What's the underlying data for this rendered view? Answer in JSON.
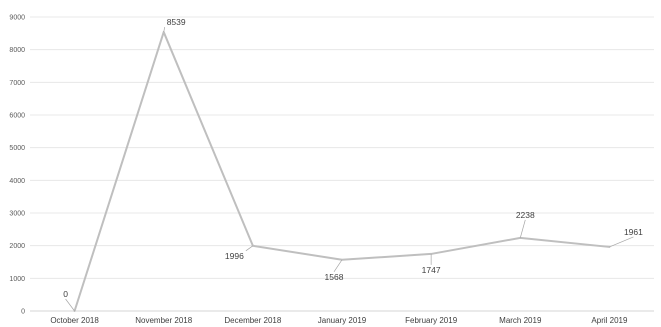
{
  "chart_data": {
    "type": "line",
    "title": "",
    "xlabel": "",
    "ylabel": "",
    "categories": [
      "October 2018",
      "November 2018",
      "December 2018",
      "January 2019",
      "February 2019",
      "March 2019",
      "April 2019"
    ],
    "series": [
      {
        "values": [
          0,
          8539,
          1996,
          1568,
          1747,
          2238,
          1961
        ]
      }
    ],
    "ylim": [
      0,
      9000
    ],
    "yticks": [
      0,
      1000,
      2000,
      3000,
      4000,
      5000,
      6000,
      7000,
      8000,
      9000
    ],
    "grid": true,
    "legend": "none",
    "data_labels": true,
    "colors": {
      "line": "#bfbfbf",
      "grid": "#e3e3e3",
      "text": "#404040"
    }
  }
}
